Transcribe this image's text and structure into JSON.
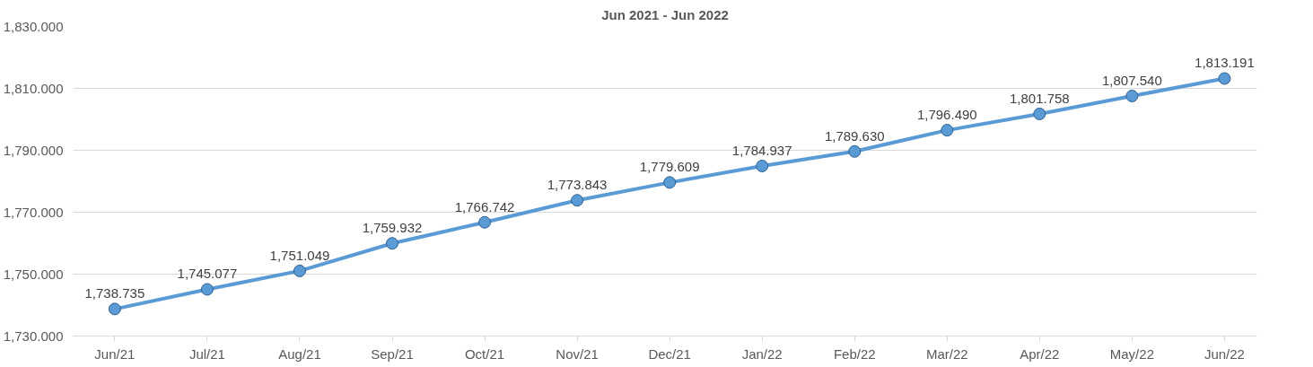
{
  "chart_data": {
    "type": "line",
    "title": "Jun 2021 - Jun 2022",
    "categories": [
      "Jun/21",
      "Jul/21",
      "Aug/21",
      "Sep/21",
      "Oct/21",
      "Nov/21",
      "Dec/21",
      "Jan/22",
      "Feb/22",
      "Mar/22",
      "Apr/22",
      "May/22",
      "Jun/22"
    ],
    "series": [
      {
        "color": "#5b9bd5",
        "values": [
          1738.735,
          1745.077,
          1751.049,
          1759.932,
          1766.742,
          1773.843,
          1779.609,
          1784.937,
          1789.63,
          1796.49,
          1801.758,
          1807.54,
          1813.191
        ],
        "value_labels": [
          "1,738.735",
          "1,745.077",
          "1,751.049",
          "1,759.932",
          "1,766.742",
          "1,773.843",
          "1,779.609",
          "1,784.937",
          "1,789.630",
          "1,796.490",
          "1,801.758",
          "1,807.540",
          "1,813.191"
        ]
      }
    ],
    "ylim": [
      1730,
      1830
    ],
    "yticks": [
      {
        "value": 1730,
        "label": "1,730.000"
      },
      {
        "value": 1750,
        "label": "1,750.000"
      },
      {
        "value": 1770,
        "label": "1,770.000"
      },
      {
        "value": 1790,
        "label": "1,790.000"
      },
      {
        "value": 1810,
        "label": "1,810.000"
      },
      {
        "value": 1830,
        "label": "1,830.000"
      }
    ],
    "grid": "y",
    "marker": "circle",
    "line_style": "solid"
  }
}
